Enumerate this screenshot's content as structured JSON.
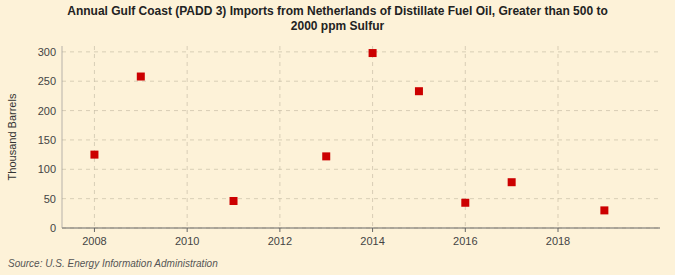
{
  "chart_data": {
    "type": "scatter",
    "title": "Annual Gulf Coast (PADD 3) Imports from Netherlands of Distillate Fuel Oil, Greater than 500 to\n2000 ppm Sulfur",
    "ylabel": "Thousand Barrels",
    "annotations": [
      "Source: U.S. Energy Information Administration"
    ],
    "x": [
      2008,
      2009,
      2011,
      2013,
      2014,
      2015,
      2016,
      2017,
      2019
    ],
    "values": [
      125,
      258,
      46,
      122,
      298,
      233,
      43,
      78,
      30
    ],
    "xlim": [
      2007.3,
      2020.2
    ],
    "ylim": [
      0,
      310
    ],
    "xticks": [
      2008,
      2010,
      2012,
      2014,
      2016,
      2018
    ],
    "yticks": [
      0,
      50,
      100,
      150,
      200,
      250,
      300
    ],
    "color": "#cc0000",
    "marker": "square",
    "grid": true
  }
}
